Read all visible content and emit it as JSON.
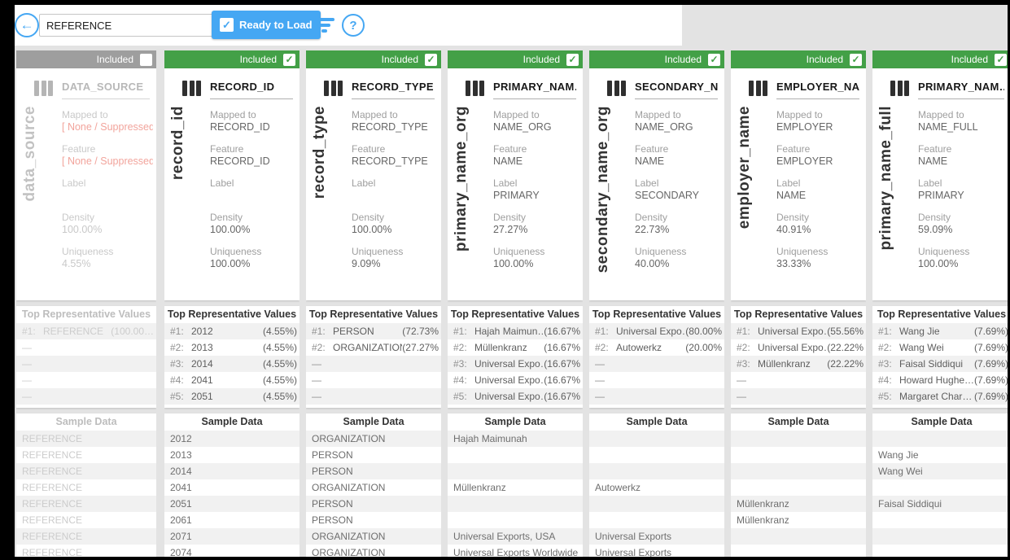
{
  "toolbar": {
    "input_value": "REFERENCE",
    "ready_button_label": "Ready to Load",
    "icons": {
      "back": "←",
      "check": "✓",
      "help": "?"
    }
  },
  "labels": {
    "included": "Included",
    "mapped_to": "Mapped to",
    "feature": "Feature",
    "label": "Label",
    "density": "Density",
    "uniqueness": "Uniqueness",
    "top_values_header": "Top Representative Values",
    "sample_header": "Sample Data"
  },
  "columns": [
    {
      "name": "data_source",
      "field": "DATA_SOURCE",
      "included": false,
      "mapped_to": "[ None / Suppressed ]",
      "mapped_suppressed": true,
      "feature": "[ None / Suppressed ]",
      "feature_suppressed": true,
      "label": "",
      "density": "100.00%",
      "uniqueness": "4.55%",
      "top_values": [
        {
          "rank": "#1:",
          "value": "REFERENCE",
          "pct": "(100.00…"
        },
        {
          "rank": "—",
          "value": "",
          "pct": ""
        },
        {
          "rank": "—",
          "value": "",
          "pct": ""
        },
        {
          "rank": "—",
          "value": "",
          "pct": ""
        },
        {
          "rank": "—",
          "value": "",
          "pct": ""
        }
      ],
      "samples": [
        "REFERENCE",
        "REFERENCE",
        "REFERENCE",
        "REFERENCE",
        "REFERENCE",
        "REFERENCE",
        "REFERENCE",
        "REFERENCE"
      ]
    },
    {
      "name": "record_id",
      "field": "RECORD_ID",
      "included": true,
      "mapped_to": "RECORD_ID",
      "mapped_suppressed": false,
      "feature": "RECORD_ID",
      "feature_suppressed": false,
      "label": "",
      "density": "100.00%",
      "uniqueness": "100.00%",
      "top_values": [
        {
          "rank": "#1:",
          "value": "2012",
          "pct": "(4.55%)"
        },
        {
          "rank": "#2:",
          "value": "2013",
          "pct": "(4.55%)"
        },
        {
          "rank": "#3:",
          "value": "2014",
          "pct": "(4.55%)"
        },
        {
          "rank": "#4:",
          "value": "2041",
          "pct": "(4.55%)"
        },
        {
          "rank": "#5:",
          "value": "2051",
          "pct": "(4.55%)"
        }
      ],
      "samples": [
        "2012",
        "2013",
        "2014",
        "2041",
        "2051",
        "2061",
        "2071",
        "2074"
      ]
    },
    {
      "name": "record_type",
      "field": "RECORD_TYPE",
      "included": true,
      "mapped_to": "RECORD_TYPE",
      "mapped_suppressed": false,
      "feature": "RECORD_TYPE",
      "feature_suppressed": false,
      "label": "",
      "density": "100.00%",
      "uniqueness": "9.09%",
      "top_values": [
        {
          "rank": "#1:",
          "value": "PERSON",
          "pct": "(72.73%"
        },
        {
          "rank": "#2:",
          "value": "ORGANIZATION",
          "pct": "(27.27%"
        },
        {
          "rank": "—",
          "value": "",
          "pct": ""
        },
        {
          "rank": "—",
          "value": "",
          "pct": ""
        },
        {
          "rank": "—",
          "value": "",
          "pct": ""
        }
      ],
      "samples": [
        "ORGANIZATION",
        "PERSON",
        "PERSON",
        "ORGANIZATION",
        "PERSON",
        "PERSON",
        "ORGANIZATION",
        "ORGANIZATION"
      ]
    },
    {
      "name": "primary_name_org",
      "field": "PRIMARY_NAM…",
      "included": true,
      "mapped_to": "NAME_ORG",
      "mapped_suppressed": false,
      "feature": "NAME",
      "feature_suppressed": false,
      "label": "PRIMARY",
      "density": "27.27%",
      "uniqueness": "100.00%",
      "top_values": [
        {
          "rank": "#1:",
          "value": "Hajah Maimun…",
          "pct": "(16.67%"
        },
        {
          "rank": "#2:",
          "value": "Müllenkranz",
          "pct": "(16.67%"
        },
        {
          "rank": "#3:",
          "value": "Universal Expo…",
          "pct": "(16.67%"
        },
        {
          "rank": "#4:",
          "value": "Universal Expo…",
          "pct": "(16.67%"
        },
        {
          "rank": "#5:",
          "value": "Universal Expo…",
          "pct": "(16.67%"
        }
      ],
      "samples": [
        "Hajah Maimunah",
        "",
        "",
        "Müllenkranz",
        "",
        "",
        "Universal Exports, USA",
        "Universal Exports Worldwide"
      ]
    },
    {
      "name": "secondary_name_org",
      "field": "SECONDARY_N…",
      "included": true,
      "mapped_to": "NAME_ORG",
      "mapped_suppressed": false,
      "feature": "NAME",
      "feature_suppressed": false,
      "label": "SECONDARY",
      "density": "22.73%",
      "uniqueness": "40.00%",
      "top_values": [
        {
          "rank": "#1:",
          "value": "Universal Expo…",
          "pct": "(80.00%"
        },
        {
          "rank": "#2:",
          "value": "Autowerkz",
          "pct": "(20.00%"
        },
        {
          "rank": "—",
          "value": "",
          "pct": ""
        },
        {
          "rank": "—",
          "value": "",
          "pct": ""
        },
        {
          "rank": "—",
          "value": "",
          "pct": ""
        }
      ],
      "samples": [
        "",
        "",
        "",
        "Autowerkz",
        "",
        "",
        "Universal Exports",
        "Universal Exports"
      ]
    },
    {
      "name": "employer_name",
      "field": "EMPLOYER_NA…",
      "included": true,
      "mapped_to": "EMPLOYER",
      "mapped_suppressed": false,
      "feature": "EMPLOYER",
      "feature_suppressed": false,
      "label": "NAME",
      "density": "40.91%",
      "uniqueness": "33.33%",
      "top_values": [
        {
          "rank": "#1:",
          "value": "Universal Expo…",
          "pct": "(55.56%"
        },
        {
          "rank": "#2:",
          "value": "Universal Expo…",
          "pct": "(22.22%"
        },
        {
          "rank": "#3:",
          "value": "Müllenkranz",
          "pct": "(22.22%"
        },
        {
          "rank": "—",
          "value": "",
          "pct": ""
        },
        {
          "rank": "—",
          "value": "",
          "pct": ""
        }
      ],
      "samples": [
        "",
        "",
        "",
        "",
        "Müllenkranz",
        "Müllenkranz",
        "",
        ""
      ]
    },
    {
      "name": "primary_name_full",
      "field": "PRIMARY_NAM…",
      "included": true,
      "mapped_to": "NAME_FULL",
      "mapped_suppressed": false,
      "feature": "NAME",
      "feature_suppressed": false,
      "label": "PRIMARY",
      "density": "59.09%",
      "uniqueness": "100.00%",
      "top_values": [
        {
          "rank": "#1:",
          "value": "Wang Jie",
          "pct": "(7.69%)"
        },
        {
          "rank": "#2:",
          "value": "Wang Wei",
          "pct": "(7.69%)"
        },
        {
          "rank": "#3:",
          "value": "Faisal Siddiqui",
          "pct": "(7.69%)"
        },
        {
          "rank": "#4:",
          "value": "Howard Hughe…",
          "pct": "(7.69%)"
        },
        {
          "rank": "#5:",
          "value": "Margaret Char…",
          "pct": "(7.69%)"
        }
      ],
      "samples": [
        "",
        "Wang Jie",
        "Wang Wei",
        "",
        "Faisal Siddiqui",
        "",
        "",
        ""
      ]
    }
  ]
}
